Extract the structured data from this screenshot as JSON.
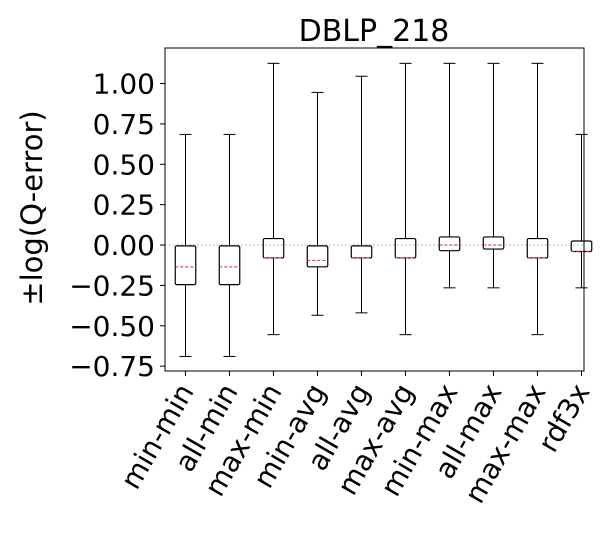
{
  "chart_data": {
    "type": "boxplot",
    "title": "DBLP_218",
    "xlabel": "",
    "ylabel": "±log(Q-error)",
    "ylim": [
      -0.78,
      1.22
    ],
    "yticks": [
      -0.75,
      -0.5,
      -0.25,
      0.0,
      0.25,
      0.5,
      0.75,
      1.0
    ],
    "ytick_labels": [
      "−0.75",
      "−0.50",
      "−0.25",
      "0.00",
      "0.25",
      "0.50",
      "0.75",
      "1.00"
    ],
    "reference_line": 0.0,
    "colors": {
      "box": "#000000",
      "median": "#d62728",
      "reference": "#aaaaaa"
    },
    "categories": [
      "min-min",
      "all-min",
      "max-min",
      "min-avg",
      "all-avg",
      "max-avg",
      "min-max",
      "all-max",
      "max-max",
      "rdf3x"
    ],
    "boxes": [
      {
        "whislo": -0.69,
        "q1": -0.245,
        "med": -0.135,
        "q3": -0.005,
        "whishi": 0.685
      },
      {
        "whislo": -0.69,
        "q1": -0.245,
        "med": -0.135,
        "q3": -0.005,
        "whishi": 0.685
      },
      {
        "whislo": -0.555,
        "q1": -0.08,
        "med": -0.08,
        "q3": 0.04,
        "whishi": 1.125
      },
      {
        "whislo": -0.435,
        "q1": -0.135,
        "med": -0.095,
        "q3": -0.005,
        "whishi": 0.945
      },
      {
        "whislo": -0.42,
        "q1": -0.08,
        "med": -0.08,
        "q3": -0.005,
        "whishi": 1.045
      },
      {
        "whislo": -0.555,
        "q1": -0.08,
        "med": -0.08,
        "q3": 0.04,
        "whishi": 1.125
      },
      {
        "whislo": -0.265,
        "q1": -0.035,
        "med": 0.0,
        "q3": 0.05,
        "whishi": 1.125
      },
      {
        "whislo": -0.265,
        "q1": -0.025,
        "med": 0.0,
        "q3": 0.05,
        "whishi": 1.125
      },
      {
        "whislo": -0.555,
        "q1": -0.08,
        "med": -0.08,
        "q3": 0.04,
        "whishi": 1.125
      },
      {
        "whislo": -0.265,
        "q1": -0.04,
        "med": -0.04,
        "q3": 0.025,
        "whishi": 0.685
      }
    ]
  }
}
